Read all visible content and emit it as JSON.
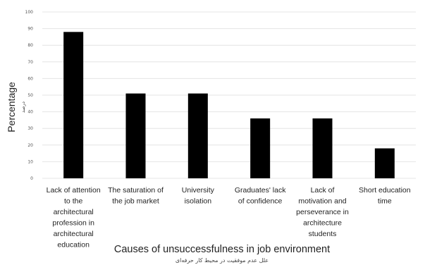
{
  "chart_data": {
    "type": "bar",
    "categories": [
      [
        "Lack of attention",
        "to the",
        "architectural",
        "profession in",
        "architectural",
        "education"
      ],
      [
        "The saturation of",
        "the job market"
      ],
      [
        "University",
        "isolation"
      ],
      [
        "Graduates' lack",
        "of confidence"
      ],
      [
        "Lack of",
        "motivation and",
        "perseverance in",
        "architecture",
        "students"
      ],
      [
        "Short education",
        "time"
      ]
    ],
    "values": [
      88,
      51,
      51,
      36,
      36,
      18
    ],
    "ylim": [
      0,
      100
    ],
    "yticks": [
      "0",
      "10",
      "20",
      "30",
      "40",
      "50",
      "60",
      "70",
      "80",
      "90",
      "100"
    ],
    "ylabel": "Percentage",
    "ylabel_secondary": "درصد",
    "xlabel": "Causes of unsuccessfulness in job environment",
    "xlabel_secondary": "علل عدم موفقیت در محیط کار حرفه‌ای",
    "grid": true,
    "bar_color": "#000000",
    "grid_color": "#e4e4e4"
  }
}
